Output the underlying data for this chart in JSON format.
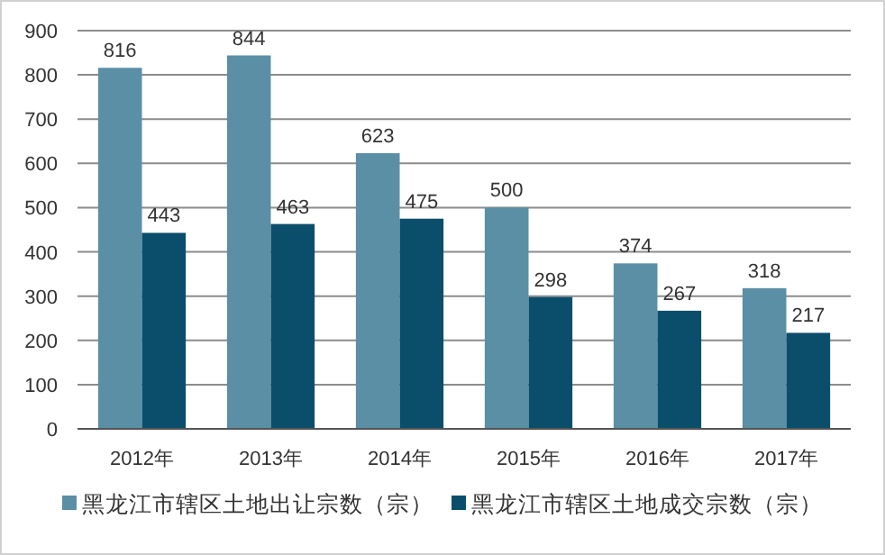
{
  "chart_data": {
    "type": "bar",
    "categories": [
      "2012年",
      "2013年",
      "2014年",
      "2015年",
      "2016年",
      "2017年"
    ],
    "series": [
      {
        "name": "黑龙江市辖区土地出让宗数（宗）",
        "color": "#5b8fa6",
        "values": [
          816,
          844,
          623,
          500,
          374,
          318
        ]
      },
      {
        "name": "黑龙江市辖区土地成交宗数（宗）",
        "color": "#0b4e6b",
        "values": [
          443,
          463,
          475,
          298,
          267,
          217
        ]
      }
    ],
    "ylim": [
      0,
      900
    ],
    "yticks": [
      0,
      100,
      200,
      300,
      400,
      500,
      600,
      700,
      800,
      900
    ],
    "grid": "y",
    "legend": "bottom",
    "data_labels": true
  }
}
